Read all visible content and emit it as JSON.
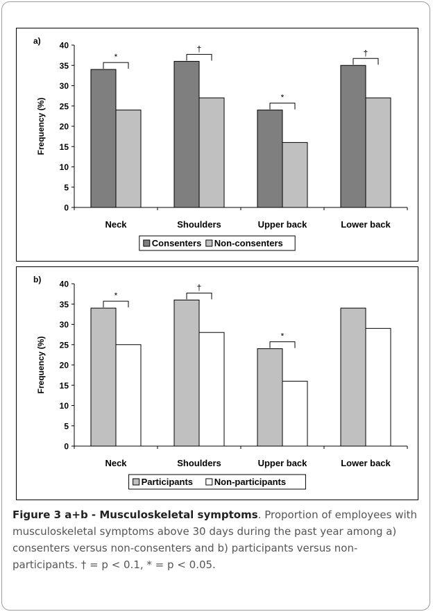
{
  "chart_data": [
    {
      "type": "bar",
      "panel_label": "a)",
      "categories": [
        "Neck",
        "Shoulders",
        "Upper back",
        "Lower back"
      ],
      "series": [
        {
          "name": "Consenters",
          "values": [
            34,
            36,
            24,
            35
          ],
          "color": "#7f7f7f"
        },
        {
          "name": "Non-consenters",
          "values": [
            24,
            27,
            16,
            27
          ],
          "color": "#c0c0c0"
        }
      ],
      "significance": [
        "*",
        "†",
        "*",
        "†"
      ],
      "ylabel": "Frequency (%)",
      "xlabel": "",
      "ylim": [
        0,
        40
      ],
      "yticks": [
        "0",
        "5",
        "10",
        "15",
        "20",
        "25",
        "30",
        "35",
        "40"
      ],
      "grid": false,
      "legend_position": "bottom"
    },
    {
      "type": "bar",
      "panel_label": "b)",
      "categories": [
        "Neck",
        "Shoulders",
        "Upper back",
        "Lower back"
      ],
      "series": [
        {
          "name": "Participants",
          "values": [
            34,
            36,
            24,
            34
          ],
          "color": "#c0c0c0"
        },
        {
          "name": "Non-participants",
          "values": [
            25,
            28,
            16,
            29
          ],
          "color": "#ffffff"
        }
      ],
      "significance": [
        "*",
        "†",
        "*",
        ""
      ],
      "ylabel": "Frequency (%)",
      "xlabel": "",
      "ylim": [
        0,
        40
      ],
      "yticks": [
        "0",
        "5",
        "10",
        "15",
        "20",
        "25",
        "30",
        "35",
        "40"
      ],
      "grid": false,
      "legend_position": "bottom"
    }
  ],
  "caption": {
    "heading": "Figure 3 a+b - Musculoskeletal symptoms",
    "text": ". Proportion of employees with musculoskeletal symptoms above 30 days during the past year among a) consenters versus non-consenters and b) participants versus non-participants. † = p < 0.1, * = p < 0.05."
  }
}
